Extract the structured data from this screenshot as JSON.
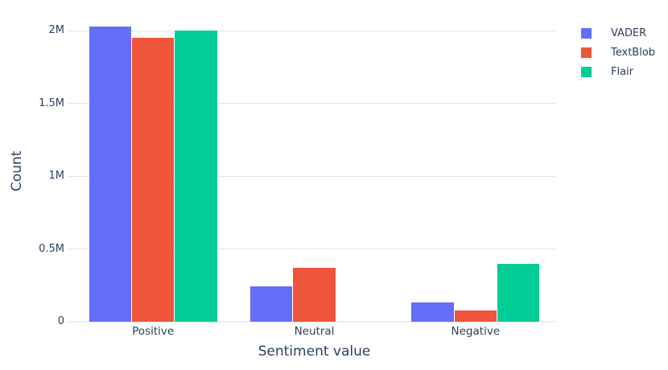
{
  "chart_data": {
    "type": "bar",
    "title": "",
    "xlabel": "Sentiment value",
    "ylabel": "Count",
    "categories": [
      "Positive",
      "Neutral",
      "Negative"
    ],
    "series": [
      {
        "name": "VADER",
        "color": "#636EFA",
        "values": [
          2030000,
          245000,
          130000
        ]
      },
      {
        "name": "TextBlob",
        "color": "#EF553B",
        "values": [
          1950000,
          370000,
          75000
        ]
      },
      {
        "name": "Flair",
        "color": "#00CC96",
        "values": [
          2000000,
          0,
          400000
        ]
      }
    ],
    "ylim": [
      0,
      2100000
    ],
    "yticks": [
      {
        "value": 0,
        "label": "0"
      },
      {
        "value": 500000,
        "label": "0.5M"
      },
      {
        "value": 1000000,
        "label": "1M"
      },
      {
        "value": 1500000,
        "label": "1.5M"
      },
      {
        "value": 2000000,
        "label": "2M"
      }
    ],
    "grid": true,
    "bar_group_fraction": 0.8,
    "legend_position": "top-right"
  },
  "style": {
    "text_color": "#2a3f5f",
    "grid_color": "#e2e2e2",
    "zeroline_color": "#e9eef6",
    "background": "#ffffff"
  }
}
